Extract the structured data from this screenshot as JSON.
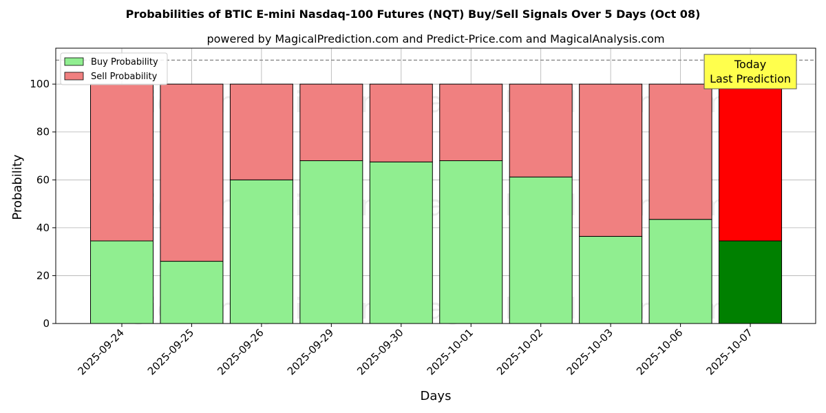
{
  "chart_data": {
    "type": "bar",
    "stacked": true,
    "title": "Probabilities of BTIC E-mini Nasdaq-100 Futures (NQT) Buy/Sell Signals Over 5 Days (Oct 08)",
    "subtitle": "powered by MagicalPrediction.com and Predict-Price.com and MagicalAnalysis.com",
    "xlabel": "Days",
    "ylabel": "Probability",
    "ylim": [
      0,
      115
    ],
    "yticks": [
      0,
      20,
      40,
      60,
      80,
      100
    ],
    "grid": true,
    "legend_position": "top-left",
    "reference_line": 110,
    "categories": [
      "2025-09-24",
      "2025-09-25",
      "2025-09-26",
      "2025-09-29",
      "2025-09-30",
      "2025-10-01",
      "2025-10-02",
      "2025-10-03",
      "2025-10-06",
      "2025-10-07"
    ],
    "series": [
      {
        "name": "Buy Probability",
        "color": "#90ee90",
        "highlight_color": "#008000",
        "values": [
          34.5,
          26,
          60,
          68,
          67.5,
          68,
          61.2,
          36.4,
          43.5,
          34.5
        ]
      },
      {
        "name": "Sell Probability",
        "color": "#f08080",
        "highlight_color": "#ff0000",
        "values": [
          65.5,
          74,
          40,
          32,
          32.5,
          32,
          38.8,
          63.6,
          56.5,
          65.5
        ]
      }
    ],
    "highlight_index": 9,
    "annotation": {
      "lines": [
        "Today",
        "Last Prediction"
      ],
      "background": "#ffff4d"
    },
    "watermarks": [
      "MagicalAnalysis.com",
      "MagicalPrediction.com"
    ]
  }
}
